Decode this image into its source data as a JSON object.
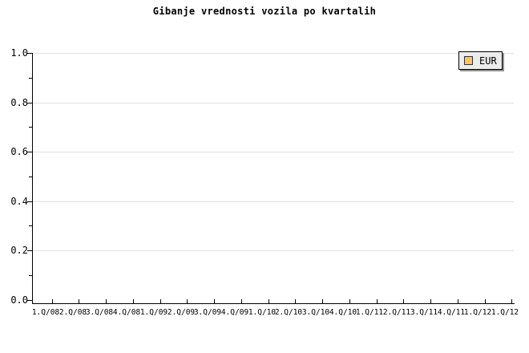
{
  "chart": {
    "title": "Gibanje vrednosti vozila po kvartalih"
  },
  "legend": {
    "label": "EUR",
    "swatch_color": "#FBC55F"
  },
  "axes": {
    "y_tick_labels": [
      "1.0",
      "0.8",
      "0.6",
      "0.4",
      "0.2",
      "0.0"
    ],
    "x_tick_labels": [
      "1.Q/08",
      "2.Q/08",
      "3.Q/08",
      "4.Q/08",
      "1.Q/09",
      "2.Q/09",
      "3.Q/09",
      "4.Q/09",
      "1.Q/10",
      "2.Q/10",
      "3.Q/10",
      "4.Q/10",
      "1.Q/11",
      "2.Q/11",
      "3.Q/11",
      "4.Q/11",
      "1.Q/12",
      "1.Q/12"
    ]
  },
  "colors": {
    "grid": "#e0e0e0",
    "axis": "#000000",
    "legend_bg": "#ececec",
    "legend_shadow": "#909090",
    "series_eur": "#FBC55F"
  },
  "chart_data": {
    "type": "line",
    "title": "Gibanje vrednosti vozila po kvartalih",
    "categories": [
      "1.Q/08",
      "2.Q/08",
      "3.Q/08",
      "4.Q/08",
      "1.Q/09",
      "2.Q/09",
      "3.Q/09",
      "4.Q/09",
      "1.Q/10",
      "2.Q/10",
      "3.Q/10",
      "4.Q/10",
      "1.Q/11",
      "2.Q/11",
      "3.Q/11",
      "4.Q/11",
      "1.Q/12",
      "1.Q/12"
    ],
    "series": [
      {
        "name": "EUR",
        "color": "#FBC55F",
        "values": []
      }
    ],
    "xlabel": "",
    "ylabel": "",
    "ylim": [
      0.0,
      1.0
    ],
    "yticks": [
      0.0,
      0.2,
      0.4,
      0.6,
      0.8,
      1.0
    ],
    "grid": "horizontal-major-only",
    "legend_position": "top-right",
    "plot_is_empty": true
  }
}
